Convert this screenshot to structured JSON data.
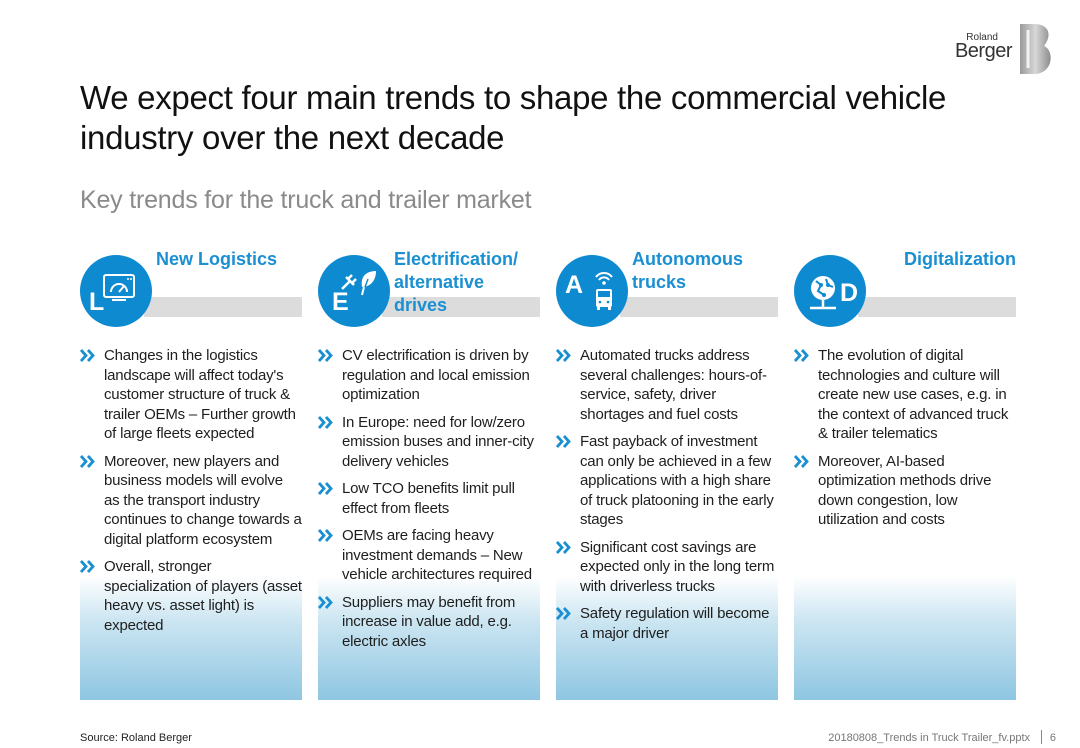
{
  "logo": {
    "line1": "Roland",
    "line2": "Berger"
  },
  "title": "We expect four main trends to shape the commercial vehicle industry over the next decade",
  "subtitle": "Key trends for the truck and trailer market",
  "colors": {
    "accent": "#1a8fd2",
    "circle": "#0e8ad0",
    "gradient": "#8ec6e2"
  },
  "trends": [
    {
      "letter": "L",
      "icon": "speedometer-screen-icon",
      "heading": "New Logistics",
      "bullets": [
        "Changes in the logistics landscape will affect today's customer structure of truck & trailer OEMs – Further growth of large fleets expected",
        "Moreover, new players and business models will evolve as the transport industry continues to change towards a digital platform ecosystem",
        "Overall, stronger specialization of players (asset heavy vs. asset light) is expected"
      ]
    },
    {
      "letter": "E",
      "icon": "plug-leaf-icon",
      "heading": "Electrification/ alternative drives",
      "bullets": [
        "CV electrification is driven by regulation and local emission optimization",
        "In Europe: need for low/zero emission buses and inner-city delivery vehicles",
        "Low TCO benefits limit pull effect from fleets",
        "OEMs are facing heavy investment demands – New vehicle architectures required",
        "Suppliers may benefit from increase in value add, e.g. electric axles"
      ]
    },
    {
      "letter": "A",
      "icon": "autonomous-bus-icon",
      "heading": "Autonomous trucks",
      "bullets": [
        "Automated trucks address several challenges: hours-of-service, safety, driver shortages and fuel costs",
        "Fast payback of investment can only be achieved in a few applications with a high share of truck platooning in the early stages",
        "Significant cost savings are expected only in the long term with driverless trucks",
        "Safety regulation will become a major driver"
      ]
    },
    {
      "letter": "D",
      "icon": "globe-network-icon",
      "heading": "Digitalization",
      "bullets": [
        "The evolution of digital technologies and culture will create new use cases, e.g. in the context of advanced truck & trailer telematics",
        "Moreover, AI-based optimization methods drive down congestion, low utilization and costs"
      ]
    }
  ],
  "footer": {
    "source": "Source: Roland Berger",
    "file": "20180808_Trends in Truck Trailer_fv.pptx",
    "page": "6"
  }
}
